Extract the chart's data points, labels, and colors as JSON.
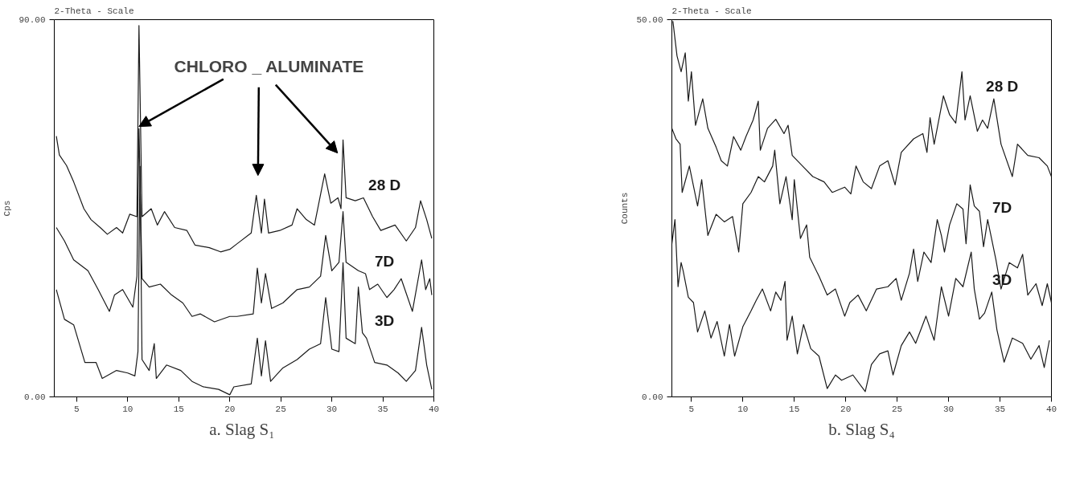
{
  "chart_data": [
    {
      "type": "line",
      "title": "2-Theta - Scale",
      "ylabel": "Cps",
      "xlim": [
        2.8,
        40
      ],
      "ylim": [
        0,
        90
      ],
      "xticks": [
        5,
        10,
        15,
        20,
        25,
        30,
        35,
        40
      ],
      "yticks": [
        {
          "value": 0,
          "label": "0.00"
        },
        {
          "value": 90,
          "label": "90.00"
        }
      ],
      "annotations": [
        {
          "text": "CHLORO _ ALUMINATE",
          "x": 11.1,
          "y": 64.5
        },
        "a.  Slag S₁"
      ],
      "series": [
        {
          "name": "28 D",
          "color": "#1a1a1a",
          "x": [
            3.0,
            3.3,
            4.0,
            4.7,
            5.7,
            6.4,
            7.3,
            8.0,
            8.9,
            9.5,
            10.2,
            10.9,
            11.1,
            11.4,
            12.3,
            12.9,
            13.6,
            14.6,
            15.8,
            16.6,
            18.0,
            19.1,
            20.0,
            20.7,
            22.1,
            22.6,
            23.1,
            23.4,
            23.8,
            24.9,
            26.1,
            26.6,
            27.5,
            28.3,
            29.3,
            29.9,
            30.6,
            30.9,
            31.1,
            31.4,
            32.3,
            33.1,
            34.0,
            34.8,
            36.2,
            37.3,
            38.2,
            38.7,
            39.3,
            39.8
          ],
          "values": [
            62.2,
            57.7,
            55.2,
            51.3,
            44.9,
            42.3,
            40.4,
            38.8,
            40.4,
            39.1,
            43.6,
            43.0,
            88.6,
            43.0,
            44.9,
            41.0,
            44.2,
            40.4,
            39.7,
            36.2,
            35.6,
            34.6,
            35.2,
            36.5,
            39.1,
            48.1,
            39.1,
            47.2,
            39.1,
            39.7,
            41.0,
            44.9,
            42.3,
            41.0,
            53.2,
            46.2,
            47.5,
            44.9,
            61.3,
            47.5,
            46.8,
            47.5,
            43.0,
            39.7,
            41.0,
            37.2,
            40.4,
            46.8,
            42.3,
            37.8
          ]
        },
        {
          "name": "7D",
          "color": "#1a1a1a",
          "x": [
            3.0,
            3.8,
            4.7,
            6.1,
            7.1,
            8.2,
            8.7,
            9.5,
            10.5,
            10.9,
            11.1,
            11.4,
            12.1,
            13.2,
            14.3,
            15.4,
            16.3,
            17.1,
            18.5,
            20.0,
            20.7,
            22.3,
            22.7,
            23.1,
            23.5,
            24.1,
            25.2,
            26.6,
            27.8,
            28.9,
            29.4,
            30.0,
            30.7,
            31.1,
            31.4,
            32.6,
            33.3,
            33.7,
            34.5,
            35.4,
            36.1,
            36.8,
            37.9,
            38.8,
            39.2,
            39.6,
            39.8
          ],
          "values": [
            40.4,
            37.2,
            32.7,
            30.1,
            25.6,
            20.4,
            24.3,
            25.6,
            21.4,
            28.8,
            64.0,
            28.2,
            26.2,
            26.9,
            24.3,
            22.4,
            19.2,
            19.8,
            17.9,
            19.2,
            19.2,
            19.8,
            30.7,
            22.4,
            29.4,
            21.1,
            22.4,
            25.6,
            26.2,
            28.8,
            38.5,
            30.1,
            32.1,
            44.2,
            32.1,
            30.1,
            29.4,
            25.6,
            26.9,
            23.7,
            25.6,
            28.2,
            20.4,
            32.7,
            25.6,
            28.2,
            24.3
          ]
        },
        {
          "name": "3D",
          "color": "#1a1a1a",
          "x": [
            3.0,
            3.8,
            4.7,
            5.8,
            6.9,
            7.5,
            8.9,
            10.0,
            10.7,
            11.0,
            11.2,
            11.4,
            12.1,
            12.6,
            12.8,
            13.8,
            15.2,
            16.3,
            17.4,
            18.9,
            20.0,
            20.4,
            22.1,
            22.7,
            23.1,
            23.5,
            24.0,
            25.2,
            26.6,
            27.8,
            28.9,
            29.4,
            30.0,
            30.7,
            31.1,
            31.4,
            32.3,
            32.6,
            33.0,
            33.4,
            34.2,
            35.4,
            36.5,
            37.3,
            38.2,
            38.8,
            39.3,
            39.8
          ],
          "values": [
            25.6,
            18.5,
            17.2,
            8.2,
            8.2,
            4.4,
            6.3,
            5.7,
            5.0,
            10.8,
            55.0,
            8.9,
            6.3,
            12.7,
            4.4,
            7.6,
            6.3,
            3.7,
            2.4,
            1.8,
            0.5,
            2.4,
            3.1,
            14.0,
            5.0,
            13.4,
            3.7,
            6.9,
            8.9,
            11.4,
            12.7,
            23.7,
            11.4,
            10.8,
            32.0,
            14.0,
            12.7,
            26.2,
            15.3,
            14.0,
            8.2,
            7.6,
            5.7,
            3.7,
            6.3,
            16.6,
            7.6,
            1.8
          ]
        }
      ]
    },
    {
      "type": "line",
      "title": "2-Theta - Scale",
      "ylabel": "Counts",
      "xlim": [
        3.1,
        40
      ],
      "ylim": [
        0,
        50
      ],
      "xticks": [
        5,
        10,
        15,
        20,
        25,
        30,
        35,
        40
      ],
      "yticks": [
        {
          "value": 0,
          "label": "0.00"
        },
        {
          "value": 50,
          "label": "50.00"
        }
      ],
      "annotations": [
        "b. Slag S₄"
      ],
      "series": [
        {
          "name": "28 D",
          "color": "#1a1a1a",
          "x": [
            3.2,
            3.6,
            4.0,
            4.4,
            4.7,
            5.0,
            5.4,
            6.1,
            6.6,
            7.4,
            7.9,
            8.5,
            9.1,
            9.8,
            10.3,
            11.0,
            11.5,
            11.7,
            12.4,
            13.2,
            14.0,
            14.4,
            14.8,
            15.8,
            16.8,
            17.9,
            18.7,
            19.9,
            20.5,
            21.0,
            21.7,
            22.5,
            23.3,
            24.1,
            24.8,
            25.4,
            26.6,
            27.5,
            27.9,
            28.2,
            28.6,
            29.5,
            30.1,
            30.7,
            31.3,
            31.6,
            32.1,
            32.8,
            33.3,
            33.8,
            34.4,
            35.1,
            36.2,
            36.7,
            37.7,
            38.8,
            39.6,
            40.0
          ],
          "values": [
            49.8,
            45.2,
            43.1,
            45.6,
            39.2,
            43.1,
            36.0,
            39.5,
            35.6,
            33.1,
            31.3,
            30.6,
            34.5,
            32.7,
            34.5,
            36.7,
            39.2,
            32.7,
            35.6,
            36.8,
            34.9,
            36.0,
            32.0,
            30.6,
            29.2,
            28.5,
            27.1,
            27.8,
            26.9,
            30.6,
            28.5,
            27.6,
            30.6,
            31.3,
            28.1,
            32.4,
            34.2,
            34.9,
            32.4,
            37.0,
            33.5,
            39.9,
            37.4,
            36.3,
            43.1,
            36.7,
            39.9,
            35.2,
            36.7,
            35.6,
            39.5,
            33.5,
            29.2,
            33.5,
            32.0,
            31.7,
            30.6,
            29.2
          ]
        },
        {
          "name": "7D",
          "color": "#1a1a1a",
          "x": [
            3.1,
            3.5,
            3.9,
            4.1,
            4.8,
            5.6,
            6.0,
            6.6,
            7.4,
            8.2,
            9.0,
            9.6,
            10.0,
            10.8,
            11.5,
            12.1,
            12.9,
            13.1,
            13.6,
            14.2,
            14.8,
            15.0,
            15.6,
            16.2,
            16.5,
            17.4,
            18.2,
            19.0,
            19.9,
            20.4,
            21.2,
            22.0,
            23.0,
            24.1,
            24.9,
            25.4,
            26.2,
            26.6,
            27.0,
            27.6,
            28.3,
            28.9,
            29.3,
            29.6,
            30.1,
            30.8,
            31.4,
            31.7,
            32.1,
            32.5,
            33.0,
            33.4,
            33.8,
            34.6,
            35.1,
            35.9,
            36.7,
            37.2,
            37.7,
            38.5,
            39.1,
            39.6,
            40.0
          ],
          "values": [
            35.6,
            34.2,
            33.5,
            27.1,
            30.6,
            25.3,
            28.8,
            21.4,
            24.2,
            23.2,
            23.9,
            19.2,
            25.6,
            27.1,
            29.2,
            28.5,
            30.6,
            32.7,
            25.6,
            29.2,
            23.5,
            28.8,
            21.0,
            22.8,
            18.5,
            16.0,
            13.5,
            14.3,
            10.7,
            12.5,
            13.5,
            11.4,
            14.3,
            14.6,
            15.7,
            12.8,
            16.4,
            19.6,
            15.3,
            19.2,
            17.8,
            23.5,
            21.4,
            19.2,
            22.8,
            25.6,
            24.9,
            20.3,
            28.1,
            25.3,
            24.6,
            19.9,
            23.5,
            18.2,
            14.3,
            17.8,
            17.1,
            18.9,
            13.5,
            15.0,
            12.1,
            15.0,
            12.5
          ]
        },
        {
          "name": "3D",
          "color": "#1a1a1a",
          "x": [
            3.1,
            3.4,
            3.7,
            4.0,
            4.2,
            4.7,
            5.2,
            5.6,
            6.3,
            6.9,
            7.5,
            8.2,
            8.7,
            9.2,
            10.0,
            10.8,
            11.3,
            11.9,
            12.7,
            13.2,
            13.7,
            14.1,
            14.3,
            14.8,
            15.3,
            15.9,
            16.6,
            17.4,
            18.2,
            19.0,
            19.6,
            20.7,
            21.9,
            22.5,
            23.3,
            24.1,
            24.6,
            25.4,
            26.2,
            26.8,
            27.8,
            28.6,
            29.3,
            30.0,
            30.7,
            31.4,
            32.2,
            32.5,
            33.0,
            33.5,
            34.2,
            34.7,
            35.4,
            36.2,
            37.2,
            38.0,
            38.8,
            39.3,
            39.8
          ],
          "values": [
            20.3,
            23.5,
            14.6,
            17.8,
            16.7,
            13.2,
            12.5,
            8.6,
            11.4,
            7.8,
            10.0,
            5.4,
            9.6,
            5.4,
            9.3,
            11.4,
            12.8,
            14.3,
            11.4,
            13.9,
            12.8,
            15.3,
            7.5,
            10.7,
            5.7,
            9.6,
            6.4,
            5.4,
            1.1,
            2.9,
            2.2,
            2.9,
            0.7,
            4.3,
            5.7,
            6.1,
            2.9,
            6.8,
            8.6,
            7.1,
            10.7,
            7.5,
            14.6,
            10.7,
            15.7,
            14.6,
            19.2,
            14.3,
            10.3,
            11.1,
            13.9,
            8.9,
            4.6,
            7.8,
            7.1,
            5.0,
            6.8,
            3.9,
            7.5
          ]
        }
      ]
    }
  ]
}
